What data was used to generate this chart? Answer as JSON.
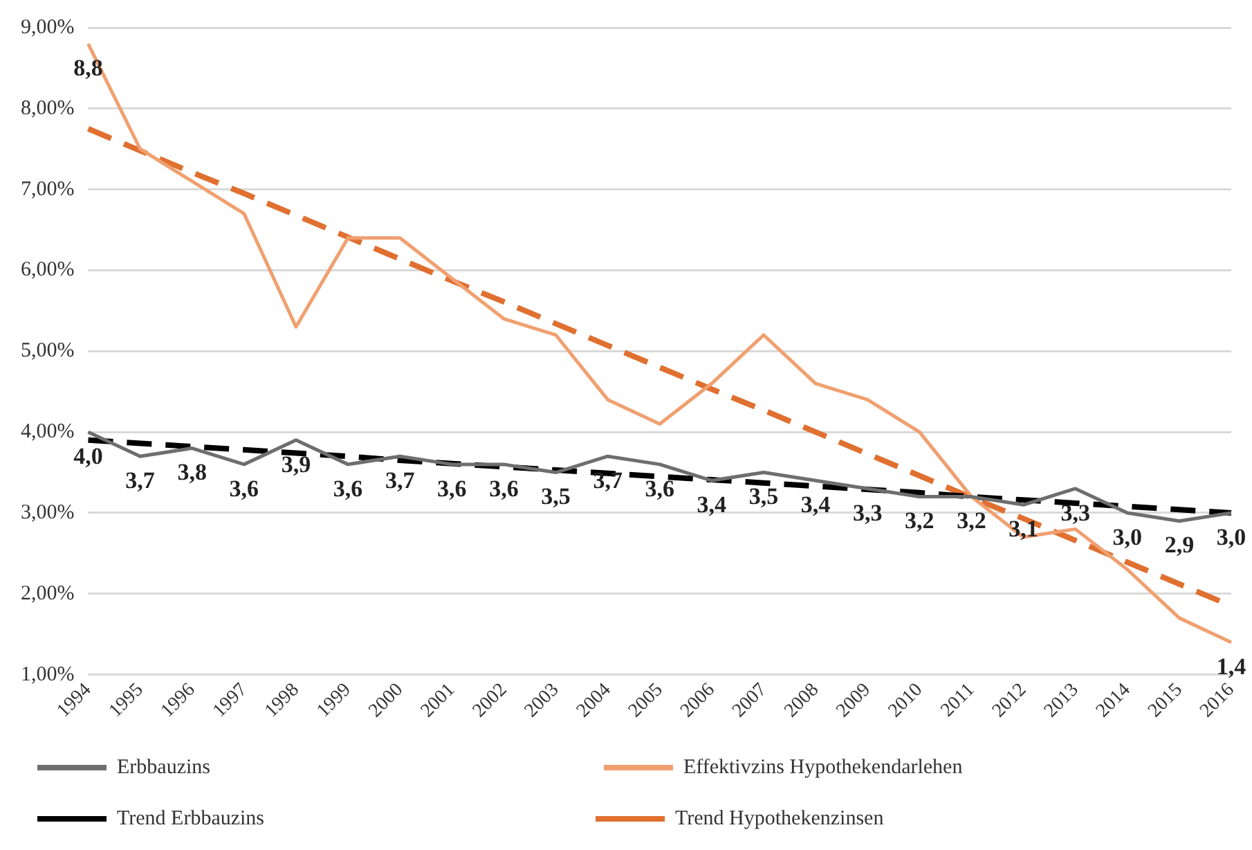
{
  "chart_data": {
    "type": "line",
    "categories": [
      "1994",
      "1995",
      "1996",
      "1997",
      "1998",
      "1999",
      "2000",
      "2001",
      "2002",
      "2003",
      "2004",
      "2005",
      "2006",
      "2007",
      "2008",
      "2009",
      "2010",
      "2011",
      "2012",
      "2013",
      "2014",
      "2015",
      "2016"
    ],
    "series": [
      {
        "name": "Erbbauzins",
        "color": "#6e6e6e",
        "line_style": "solid",
        "values": [
          4.0,
          3.7,
          3.8,
          3.6,
          3.9,
          3.6,
          3.7,
          3.6,
          3.6,
          3.5,
          3.7,
          3.6,
          3.4,
          3.5,
          3.4,
          3.3,
          3.2,
          3.2,
          3.1,
          3.3,
          3.0,
          2.9,
          3.0
        ],
        "value_labels": [
          "4,0",
          "3,7",
          "3,8",
          "3,6",
          "3,9",
          "3,6",
          "3,7",
          "3,6",
          "3,6",
          "3,5",
          "3,7",
          "3,6",
          "3,4",
          "3,5",
          "3,4",
          "3,3",
          "3,2",
          "3,2",
          "3,1",
          "3,3",
          "3,0",
          "2,9",
          "3,0"
        ]
      },
      {
        "name": "Effektivzins Hypothekendarlehen",
        "color": "#f0a070",
        "line_style": "solid",
        "values": [
          8.8,
          7.5,
          7.1,
          6.7,
          5.3,
          6.4,
          6.4,
          5.9,
          5.4,
          5.2,
          4.4,
          4.1,
          4.6,
          5.2,
          4.6,
          4.4,
          4.0,
          3.2,
          2.7,
          2.8,
          2.3,
          1.7,
          1.4
        ],
        "value_labels": [
          "8,8",
          null,
          null,
          null,
          null,
          null,
          null,
          null,
          null,
          null,
          null,
          null,
          null,
          null,
          null,
          null,
          null,
          null,
          null,
          null,
          null,
          null,
          "1,4"
        ]
      },
      {
        "name": "Trend Erbbauzins",
        "color": "#000000",
        "line_style": "dashed",
        "values": [
          3.9,
          3.86,
          3.82,
          3.78,
          3.74,
          3.7,
          3.65,
          3.61,
          3.57,
          3.53,
          3.49,
          3.45,
          3.41,
          3.37,
          3.33,
          3.29,
          3.25,
          3.2,
          3.16,
          3.12,
          3.08,
          3.04,
          3.0
        ]
      },
      {
        "name": "Trend Hypothekenzinsen",
        "color": "#e07030",
        "line_style": "dashed",
        "values": [
          7.75,
          7.48,
          7.21,
          6.95,
          6.68,
          6.41,
          6.14,
          5.87,
          5.61,
          5.34,
          5.07,
          4.8,
          4.53,
          4.27,
          4.0,
          3.73,
          3.46,
          3.19,
          2.93,
          2.66,
          2.39,
          2.12,
          1.85
        ]
      }
    ],
    "ylim": [
      1,
      9
    ],
    "yticks": [
      {
        "value": 1,
        "label": "1,00%"
      },
      {
        "value": 2,
        "label": "2,00%"
      },
      {
        "value": 3,
        "label": "3,00%"
      },
      {
        "value": 4,
        "label": "4,00%"
      },
      {
        "value": 5,
        "label": "5,00%"
      },
      {
        "value": 6,
        "label": "6,00%"
      },
      {
        "value": 7,
        "label": "7,00%"
      },
      {
        "value": 8,
        "label": "8,00%"
      },
      {
        "value": 9,
        "label": "9,00%"
      }
    ],
    "grid": "y",
    "legend": "bottom",
    "marker": "none"
  }
}
